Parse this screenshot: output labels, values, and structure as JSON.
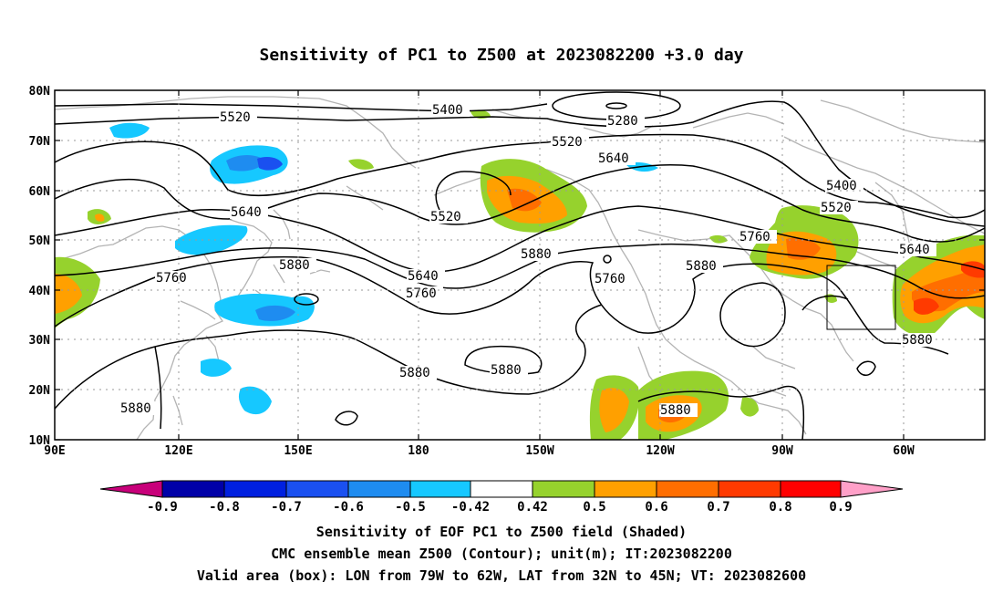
{
  "title": "Sensitivity of PC1 to Z500 at 2023082200 +3.0 day",
  "lat_labels": [
    "80N",
    "70N",
    "60N",
    "50N",
    "40N",
    "30N",
    "20N",
    "10N"
  ],
  "lon_labels": [
    "90E",
    "120E",
    "150E",
    "180",
    "150W",
    "120W",
    "90W",
    "60W"
  ],
  "contour_labels": [
    "5520",
    "5400",
    "5280",
    "5520",
    "5640",
    "5640",
    "5520",
    "5400",
    "5520",
    "5760",
    "5640",
    "5760",
    "5880",
    "5640",
    "5760",
    "5880",
    "5760",
    "5880",
    "5880",
    "5880",
    "5880",
    "5880",
    "5880"
  ],
  "colorbar": {
    "labels": [
      "-0.9",
      "-0.8",
      "-0.7",
      "-0.6",
      "-0.5",
      "-0.42",
      "0.42",
      "0.5",
      "0.6",
      "0.7",
      "0.8",
      "0.9"
    ],
    "colors": [
      "#0000a8",
      "#0020e0",
      "#1a50f0",
      "#1e8cf0",
      "#16c8ff",
      "#ffffff",
      "#96d22d",
      "#ffa000",
      "#ff6e00",
      "#ff3a00",
      "#ff0000"
    ],
    "low_end_color": "#c8007a",
    "high_end_color": "#ffa0c8"
  },
  "captions": [
    "Sensitivity of EOF PC1 to Z500 field (Shaded)",
    "CMC ensemble mean Z500 (Contour); unit(m); IT:2023082200",
    "Valid area (box): LON from 79W to 62W, LAT from 32N to 45N; VT: 2023082600"
  ]
}
